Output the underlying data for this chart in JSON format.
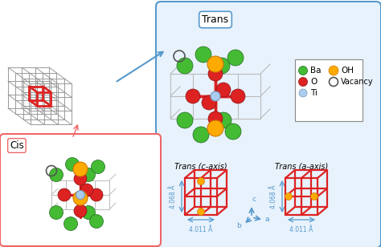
{
  "background_color": "#ffffff",
  "trans_label": "Trans",
  "cis_label": "Cis",
  "trans_c_axis_label": "Trans (c-axis)",
  "trans_a_axis_label": "Trans (a-axis)",
  "dim_c": "4.068 Å",
  "dim_a": "4.011 Å",
  "blue_arrow_color": "#5599cc",
  "red_color": "#dd2222",
  "green_color": "#44bb33",
  "orange_color": "#ffaa00",
  "gray_line_color": "#999999",
  "bond_color": "#aabbcc",
  "box_bg": "#e8f2fc",
  "cis_box_color": "#ee6666",
  "legend_box_color": "#888888"
}
